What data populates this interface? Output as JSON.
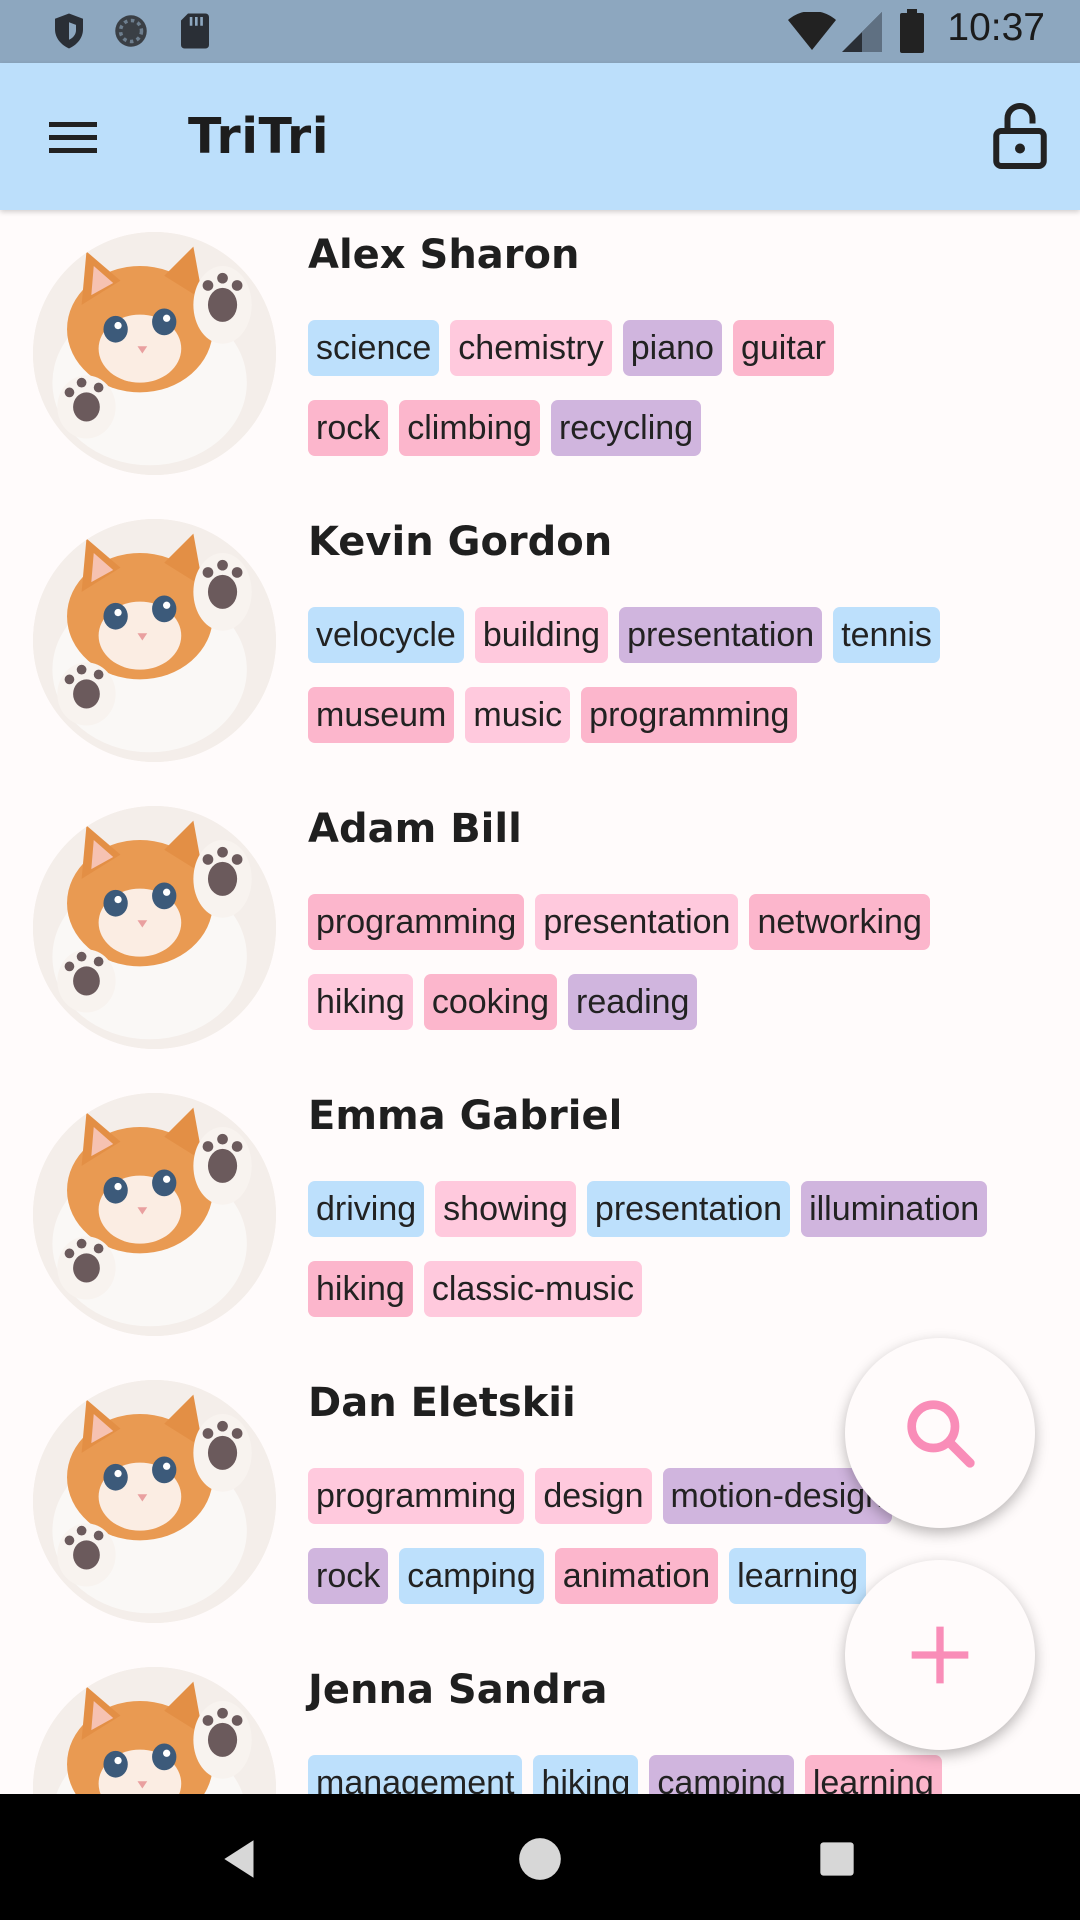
{
  "status_bar": {
    "time": "10:37",
    "icons": [
      "shield-icon",
      "sync-icon",
      "sd-card-icon",
      "wifi-icon",
      "signal-icon",
      "battery-icon"
    ]
  },
  "app_bar": {
    "title": "TriTri",
    "menu_icon": "menu-icon",
    "lock_icon": "lock-open-icon"
  },
  "colors": {
    "app_bar": "#BCDFFB",
    "status_bar": "#8DA7BF",
    "tag_blue": "#BDE0FC",
    "tag_pink": "#FFC9DD",
    "tag_rose": "#FCB6CC",
    "tag_purple": "#D0B5DE",
    "fab_icon": "#F98DB8"
  },
  "people": [
    {
      "name": "Alex Sharon",
      "rows": [
        [
          {
            "label": "science",
            "color": "blue"
          },
          {
            "label": "chemistry",
            "color": "pink"
          },
          {
            "label": "piano",
            "color": "purple"
          },
          {
            "label": "guitar",
            "color": "rose"
          }
        ],
        [
          {
            "label": "rock",
            "color": "rose"
          },
          {
            "label": "climbing",
            "color": "rose"
          },
          {
            "label": "recycling",
            "color": "purple"
          }
        ]
      ]
    },
    {
      "name": "Kevin Gordon",
      "rows": [
        [
          {
            "label": "velocycle",
            "color": "blue"
          },
          {
            "label": "building",
            "color": "pink"
          },
          {
            "label": "presentation",
            "color": "purple"
          },
          {
            "label": "tennis",
            "color": "blue"
          }
        ],
        [
          {
            "label": "museum",
            "color": "rose"
          },
          {
            "label": "music",
            "color": "pink"
          },
          {
            "label": "programming",
            "color": "rose"
          }
        ]
      ]
    },
    {
      "name": "Adam Bill",
      "rows": [
        [
          {
            "label": "programming",
            "color": "rose"
          },
          {
            "label": "presentation",
            "color": "pink"
          },
          {
            "label": "networking",
            "color": "rose"
          }
        ],
        [
          {
            "label": "hiking",
            "color": "pink"
          },
          {
            "label": "cooking",
            "color": "rose"
          },
          {
            "label": "reading",
            "color": "purple"
          }
        ]
      ]
    },
    {
      "name": "Emma Gabriel",
      "rows": [
        [
          {
            "label": "driving",
            "color": "blue"
          },
          {
            "label": "showing",
            "color": "pink"
          },
          {
            "label": "presentation",
            "color": "blue"
          },
          {
            "label": "illumination",
            "color": "purple"
          }
        ],
        [
          {
            "label": "hiking",
            "color": "rose"
          },
          {
            "label": "classic-music",
            "color": "pink"
          }
        ]
      ]
    },
    {
      "name": "Dan Eletskii",
      "rows": [
        [
          {
            "label": "programming",
            "color": "pink"
          },
          {
            "label": "design",
            "color": "pink"
          },
          {
            "label": "motion-design",
            "color": "purple"
          }
        ],
        [
          {
            "label": "rock",
            "color": "purple"
          },
          {
            "label": "camping",
            "color": "blue"
          },
          {
            "label": "animation",
            "color": "rose"
          },
          {
            "label": "learning",
            "color": "blue"
          }
        ]
      ]
    },
    {
      "name": "Jenna Sandra",
      "rows": [
        [
          {
            "label": "management",
            "color": "blue"
          },
          {
            "label": "hiking",
            "color": "blue"
          },
          {
            "label": "camping",
            "color": "purple"
          },
          {
            "label": "learning",
            "color": "rose"
          }
        ]
      ]
    }
  ],
  "fabs": {
    "search_icon": "search-icon",
    "add_icon": "plus-icon"
  },
  "nav_bar": {
    "icons": [
      "back-icon",
      "home-icon",
      "recents-icon"
    ]
  }
}
